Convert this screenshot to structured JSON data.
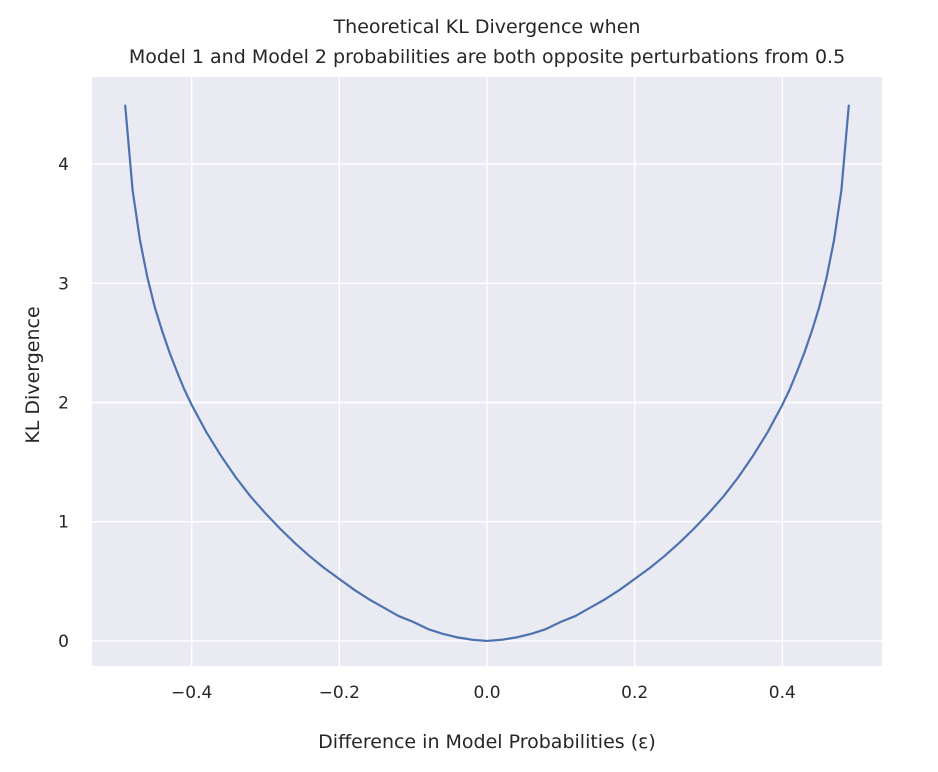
{
  "chart_data": {
    "type": "line",
    "title_line1": "Theoretical KL Divergence when",
    "title_line2": "Model 1 and Model 2 probabilities are both opposite perturbations from 0.5",
    "xlabel": "Difference in Model Probabilities (ε)",
    "ylabel": "KL Divergence",
    "xlim": [
      -0.535,
      0.535
    ],
    "ylim": [
      -0.21,
      4.73
    ],
    "xticks": [
      -0.4,
      -0.2,
      0.0,
      0.2,
      0.4
    ],
    "xtick_labels": [
      "−0.4",
      "−0.2",
      "0.0",
      "0.2",
      "0.4"
    ],
    "yticks": [
      0,
      1,
      2,
      3,
      4
    ],
    "ytick_labels": [
      "0",
      "1",
      "2",
      "3",
      "4"
    ],
    "grid": true,
    "background": "#eaeaf2",
    "grid_color": "#ffffff",
    "line_color": "#4c72b0",
    "series": [
      {
        "x": [
          -0.49,
          -0.48,
          -0.47,
          -0.46,
          -0.45,
          -0.44,
          -0.43,
          -0.42,
          -0.41,
          -0.4,
          -0.38,
          -0.36,
          -0.34,
          -0.32,
          -0.3,
          -0.28,
          -0.26,
          -0.24,
          -0.22,
          -0.2,
          -0.18,
          -0.16,
          -0.14,
          -0.12,
          -0.1,
          -0.08,
          -0.06,
          -0.04,
          -0.02,
          0.0,
          0.02,
          0.04,
          0.06,
          0.08,
          0.1,
          0.12,
          0.14,
          0.16,
          0.18,
          0.2,
          0.22,
          0.24,
          0.26,
          0.28,
          0.3,
          0.32,
          0.34,
          0.36,
          0.38,
          0.4,
          0.41,
          0.42,
          0.43,
          0.44,
          0.45,
          0.46,
          0.47,
          0.48,
          0.49
        ],
        "y": [
          4.49,
          3.78,
          3.36,
          3.05,
          2.8,
          2.6,
          2.42,
          2.26,
          2.11,
          1.98,
          1.75,
          1.55,
          1.37,
          1.21,
          1.07,
          0.94,
          0.82,
          0.71,
          0.61,
          0.52,
          0.43,
          0.35,
          0.28,
          0.21,
          0.16,
          0.1,
          0.06,
          0.03,
          0.01,
          0.0,
          0.01,
          0.03,
          0.06,
          0.1,
          0.16,
          0.21,
          0.28,
          0.35,
          0.43,
          0.52,
          0.61,
          0.71,
          0.82,
          0.94,
          1.07,
          1.21,
          1.37,
          1.55,
          1.75,
          1.98,
          2.11,
          2.26,
          2.42,
          2.6,
          2.8,
          3.05,
          3.36,
          3.78,
          4.49
        ]
      }
    ]
  }
}
